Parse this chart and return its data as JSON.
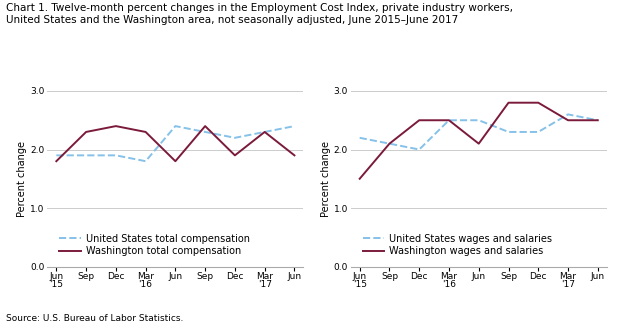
{
  "title_line1": "Chart 1. Twelve-month percent changes in the Employment Cost Index, private industry workers,",
  "title_line2": "United States and the Washington area, not seasonally adjusted, June 2015–June 2017",
  "source": "Source: U.S. Bureau of Labor Statistics.",
  "x_labels": [
    "Jun\n'15",
    "Sep",
    "Dec",
    "Mar\n'16",
    "Jun",
    "Sep",
    "Dec",
    "Mar\n'17",
    "Jun"
  ],
  "x_ticks": [
    0,
    1,
    2,
    3,
    4,
    5,
    6,
    7,
    8
  ],
  "ylabel": "Percent change",
  "ylim": [
    0.0,
    3.0
  ],
  "yticks": [
    0.0,
    1.0,
    2.0,
    3.0
  ],
  "chart1": {
    "us_total": [
      1.9,
      1.9,
      1.9,
      1.8,
      2.4,
      2.3,
      2.2,
      2.3,
      2.4
    ],
    "wash_total": [
      1.8,
      2.3,
      2.4,
      2.3,
      1.8,
      2.4,
      1.9,
      2.3,
      1.9
    ],
    "us_label": "United States total compensation",
    "wash_label": "Washington total compensation"
  },
  "chart2": {
    "us_wages": [
      2.2,
      2.1,
      2.0,
      2.5,
      2.5,
      2.3,
      2.3,
      2.6,
      2.5
    ],
    "wash_wages": [
      1.5,
      2.1,
      2.5,
      2.5,
      2.1,
      2.8,
      2.8,
      2.5,
      2.5
    ],
    "us_label": "United States wages and salaries",
    "wash_label": "Washington wages and salaries"
  },
  "us_color": "#85C1E9",
  "wash_color": "#7B1A3A",
  "us_linestyle": "--",
  "wash_linestyle": "-",
  "linewidth": 1.4,
  "grid_color": "#cccccc",
  "background_color": "#ffffff",
  "title_fontsize": 7.5,
  "axis_label_fontsize": 7.0,
  "tick_fontsize": 6.5,
  "legend_fontsize": 7.0
}
